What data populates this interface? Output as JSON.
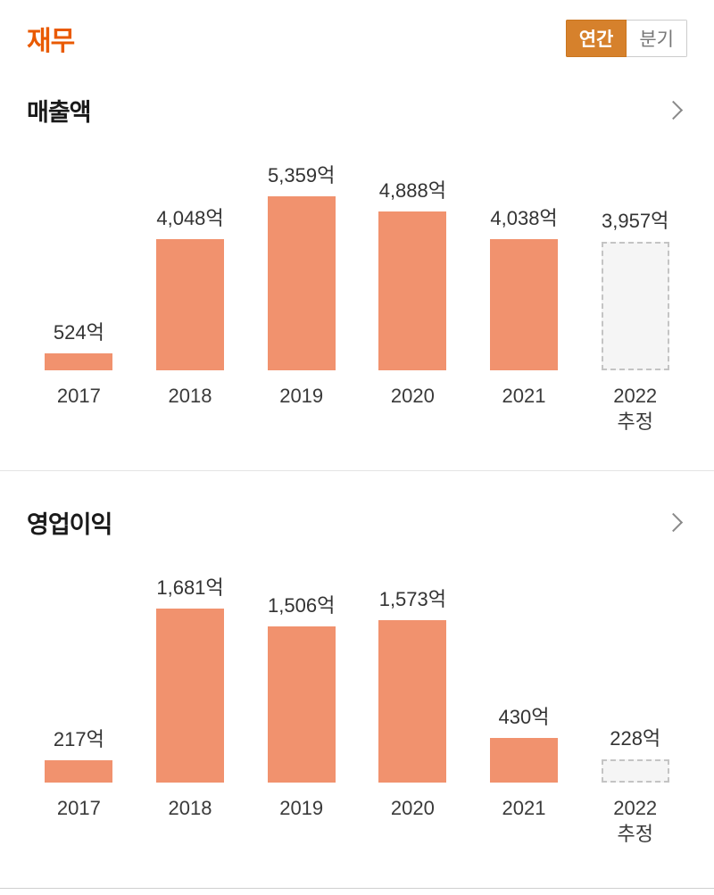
{
  "header": {
    "title": "재무",
    "toggle": {
      "annual": "연간",
      "quarterly": "분기"
    },
    "selected_period": "연간"
  },
  "accent_colors": {
    "title": "#e95a00",
    "bar": "#f1926e",
    "active_tab_bg": "#d6812c",
    "active_tab_border": "#c9751f",
    "estimate_fill": "#f5f5f5",
    "estimate_border": "#c4c4c4"
  },
  "chart_data": [
    {
      "type": "bar",
      "title": "매출액",
      "unit": "억",
      "categories": [
        "2017",
        "2018",
        "2019",
        "2020",
        "2021",
        "2022"
      ],
      "category_sublabels": [
        "",
        "",
        "",
        "",
        "",
        "추정"
      ],
      "values": [
        524,
        4048,
        5359,
        4888,
        4038,
        3957
      ],
      "value_labels": [
        "524억",
        "4,048억",
        "5,359억",
        "4,888억",
        "4,038억",
        "3,957억"
      ],
      "estimate_index": 5,
      "ylim": [
        0,
        5359
      ],
      "grid": false,
      "legend": false
    },
    {
      "type": "bar",
      "title": "영업이익",
      "unit": "억",
      "categories": [
        "2017",
        "2018",
        "2019",
        "2020",
        "2021",
        "2022"
      ],
      "category_sublabels": [
        "",
        "",
        "",
        "",
        "",
        "추정"
      ],
      "values": [
        217,
        1681,
        1506,
        1573,
        430,
        228
      ],
      "value_labels": [
        "217억",
        "1,681억",
        "1,506억",
        "1,573억",
        "430억",
        "228억"
      ],
      "estimate_index": 5,
      "ylim": [
        0,
        1681
      ],
      "grid": false,
      "legend": false
    }
  ]
}
